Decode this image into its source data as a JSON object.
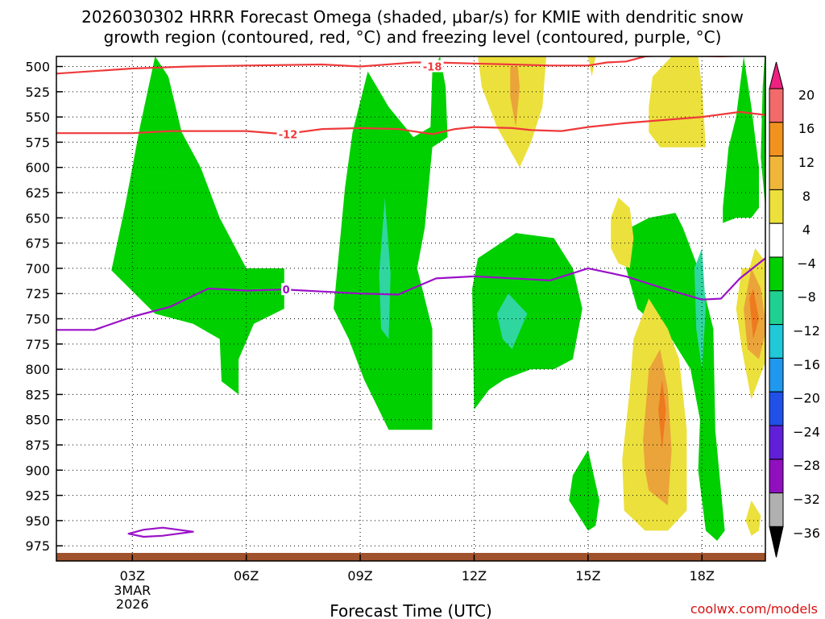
{
  "chart_data": {
    "type": "contour",
    "title_lines": [
      "2026030302 HRRR Forecast Omega (shaded, μbar/s) for KMIE with dendritic snow",
      "growth region (contoured, red, °C) and freezing level (contoured, purple, °C)"
    ],
    "xlabel": "Forecast Time (UTC)",
    "credit": "coolwx.com/models",
    "xlim": [
      1,
      19.67
    ],
    "ylim": [
      990,
      490
    ],
    "x_ticks": [
      {
        "x": 3,
        "label": "03Z",
        "sub": [
          "3MAR",
          "2026"
        ]
      },
      {
        "x": 6,
        "label": "06Z"
      },
      {
        "x": 9,
        "label": "09Z"
      },
      {
        "x": 12,
        "label": "12Z"
      },
      {
        "x": 15,
        "label": "15Z"
      },
      {
        "x": 18,
        "label": "18Z"
      }
    ],
    "y_ticks": [
      500,
      525,
      550,
      575,
      600,
      625,
      650,
      675,
      700,
      725,
      750,
      775,
      800,
      825,
      850,
      875,
      900,
      925,
      950,
      975
    ],
    "colorbar": {
      "labels": [
        "20",
        "16",
        "12",
        "8",
        "4",
        "−4",
        "−8",
        "−12",
        "−16",
        "−20",
        "−24",
        "−28",
        "−32",
        "−36"
      ],
      "colors": [
        "#f26a6a",
        "#f2921e",
        "#f0b63a",
        "#ece03c",
        "#ffffff",
        "#00d000",
        "#20d090",
        "#20c8d8",
        "#2098ee",
        "#2050e8",
        "#6020d8",
        "#9010c0",
        "#b0b0b0"
      ],
      "top_color": "#ee2080",
      "bottom_color": "#000000"
    },
    "colors": {
      "green": "#00d000",
      "teal": "#30d6a0",
      "cyan": "#30c8d8",
      "yellow": "#ece03c",
      "orange": "#eaa43a",
      "dorange": "#ee7a1e",
      "red": "#ee3a3a",
      "purple": "#9a10c8",
      "ground": "#a0522d"
    },
    "shaded": [
      {
        "color": "green",
        "points": [
          [
            2.45,
            702
          ],
          [
            2.8,
            640
          ],
          [
            3.2,
            560
          ],
          [
            3.6,
            490
          ],
          [
            3.95,
            510
          ],
          [
            4.3,
            565
          ],
          [
            4.8,
            600
          ],
          [
            5.3,
            650
          ],
          [
            6,
            700
          ],
          [
            7,
            700
          ],
          [
            7,
            740
          ],
          [
            6.2,
            755
          ],
          [
            5.8,
            790
          ],
          [
            5.8,
            825
          ],
          [
            5.35,
            812
          ],
          [
            5.3,
            770
          ],
          [
            4.6,
            755
          ],
          [
            3.6,
            745
          ]
        ]
      },
      {
        "color": "green",
        "points": [
          [
            8.4,
            700
          ],
          [
            8.6,
            620
          ],
          [
            8.8,
            565
          ],
          [
            9.2,
            505
          ],
          [
            9.75,
            540
          ],
          [
            10.4,
            570
          ],
          [
            10.85,
            560
          ],
          [
            10.9,
            505
          ],
          [
            11.1,
            490
          ],
          [
            11.25,
            520
          ],
          [
            11.3,
            570
          ],
          [
            10.9,
            580
          ],
          [
            10.7,
            660
          ],
          [
            10.5,
            700
          ],
          [
            10.9,
            760
          ],
          [
            10.9,
            860
          ],
          [
            10.1,
            860
          ],
          [
            9.75,
            860
          ],
          [
            9.1,
            810
          ],
          [
            8.7,
            770
          ],
          [
            8.3,
            740
          ]
        ]
      },
      {
        "color": "teal",
        "points": [
          [
            9.5,
            705
          ],
          [
            9.65,
            630
          ],
          [
            9.8,
            705
          ],
          [
            9.75,
            770
          ],
          [
            9.55,
            760
          ]
        ]
      },
      {
        "color": "green",
        "points": [
          [
            11.95,
            720
          ],
          [
            12.1,
            690
          ],
          [
            12.5,
            680
          ],
          [
            13.1,
            665
          ],
          [
            14.1,
            670
          ],
          [
            14.6,
            700
          ],
          [
            14.85,
            740
          ],
          [
            14.6,
            790
          ],
          [
            14.1,
            800
          ],
          [
            13.5,
            800
          ],
          [
            12.8,
            810
          ],
          [
            12.4,
            820
          ],
          [
            12,
            840
          ]
        ]
      },
      {
        "color": "teal",
        "points": [
          [
            12.6,
            745
          ],
          [
            12.9,
            725
          ],
          [
            13.4,
            745
          ],
          [
            13,
            780
          ],
          [
            12.75,
            770
          ]
        ]
      },
      {
        "color": "green",
        "points": [
          [
            16.1,
            660
          ],
          [
            16.6,
            650
          ],
          [
            17.3,
            645
          ],
          [
            17.5,
            660
          ],
          [
            17.9,
            700
          ],
          [
            18.3,
            760
          ],
          [
            18.35,
            860
          ],
          [
            18.6,
            960
          ],
          [
            18.4,
            970
          ],
          [
            18.1,
            960
          ],
          [
            17.9,
            900
          ],
          [
            17.95,
            850
          ],
          [
            17.7,
            800
          ],
          [
            17.2,
            770
          ],
          [
            16.3,
            740
          ],
          [
            16,
            700
          ]
        ]
      },
      {
        "color": "teal",
        "points": [
          [
            17.8,
            700
          ],
          [
            18,
            680
          ],
          [
            18.1,
            740
          ],
          [
            18,
            800
          ],
          [
            17.85,
            760
          ]
        ]
      },
      {
        "color": "green",
        "points": [
          [
            14.5,
            930
          ],
          [
            14.6,
            905
          ],
          [
            15,
            880
          ],
          [
            15.3,
            930
          ],
          [
            15.2,
            955
          ],
          [
            15,
            960
          ]
        ]
      },
      {
        "color": "green",
        "points": [
          [
            18.55,
            640
          ],
          [
            18.7,
            580
          ],
          [
            18.9,
            550
          ],
          [
            19.1,
            490
          ],
          [
            19.3,
            540
          ],
          [
            19.5,
            600
          ],
          [
            19.5,
            640
          ],
          [
            19.3,
            650
          ],
          [
            18.9,
            650
          ],
          [
            18.55,
            655
          ]
        ]
      },
      {
        "color": "green",
        "points": [
          [
            19.6,
            520
          ],
          [
            19.67,
            480
          ],
          [
            19.67,
            640
          ],
          [
            19.55,
            590
          ]
        ]
      },
      {
        "color": "yellow",
        "points": [
          [
            12.1,
            490
          ],
          [
            13.9,
            490
          ],
          [
            13.8,
            540
          ],
          [
            13.5,
            575
          ],
          [
            13.2,
            600
          ],
          [
            12.6,
            560
          ],
          [
            12.2,
            520
          ]
        ]
      },
      {
        "color": "orange",
        "points": [
          [
            12.95,
            500
          ],
          [
            13.15,
            500
          ],
          [
            13.2,
            520
          ],
          [
            13.1,
            560
          ],
          [
            12.95,
            530
          ]
        ]
      },
      {
        "color": "yellow",
        "points": [
          [
            15,
            490
          ],
          [
            15.2,
            490
          ],
          [
            15.1,
            510
          ]
        ]
      },
      {
        "color": "yellow",
        "points": [
          [
            16.6,
            540
          ],
          [
            16.7,
            510
          ],
          [
            17.2,
            490
          ],
          [
            17.9,
            490
          ],
          [
            18,
            520
          ],
          [
            18.1,
            580
          ],
          [
            17.5,
            580
          ],
          [
            16.9,
            580
          ],
          [
            16.6,
            565
          ]
        ]
      },
      {
        "color": "yellow",
        "points": [
          [
            15.6,
            650
          ],
          [
            15.8,
            630
          ],
          [
            16.1,
            640
          ],
          [
            16.2,
            670
          ],
          [
            16.1,
            700
          ],
          [
            15.8,
            695
          ],
          [
            15.6,
            680
          ]
        ]
      },
      {
        "color": "yellow",
        "points": [
          [
            15.9,
            890
          ],
          [
            16.1,
            820
          ],
          [
            16.2,
            770
          ],
          [
            16.6,
            730
          ],
          [
            17.1,
            760
          ],
          [
            17.4,
            790
          ],
          [
            17.6,
            860
          ],
          [
            17.6,
            940
          ],
          [
            17.1,
            960
          ],
          [
            16.5,
            960
          ],
          [
            15.95,
            940
          ]
        ]
      },
      {
        "color": "orange",
        "points": [
          [
            16.45,
            870
          ],
          [
            16.6,
            800
          ],
          [
            16.9,
            780
          ],
          [
            17.1,
            820
          ],
          [
            17.2,
            880
          ],
          [
            17.1,
            935
          ],
          [
            16.6,
            920
          ],
          [
            16.5,
            900
          ]
        ]
      },
      {
        "color": "dorange",
        "points": [
          [
            16.85,
            840
          ],
          [
            16.95,
            810
          ],
          [
            17.05,
            840
          ],
          [
            16.95,
            880
          ]
        ]
      },
      {
        "color": "yellow",
        "points": [
          [
            19.25,
            700
          ],
          [
            19.4,
            680
          ],
          [
            19.8,
            700
          ],
          [
            19.9,
            740
          ],
          [
            19.8,
            780
          ],
          [
            19.5,
            810
          ],
          [
            19.3,
            830
          ],
          [
            19.05,
            780
          ],
          [
            18.9,
            740
          ],
          [
            19.05,
            700
          ]
        ]
      },
      {
        "color": "orange",
        "points": [
          [
            19.1,
            740
          ],
          [
            19.3,
            700
          ],
          [
            19.55,
            720
          ],
          [
            19.7,
            760
          ],
          [
            19.5,
            790
          ],
          [
            19.2,
            780
          ]
        ]
      },
      {
        "color": "dorange",
        "points": [
          [
            19.25,
            730
          ],
          [
            19.35,
            720
          ],
          [
            19.5,
            750
          ],
          [
            19.35,
            770
          ]
        ]
      },
      {
        "color": "yellow",
        "points": [
          [
            19.15,
            950
          ],
          [
            19.3,
            930
          ],
          [
            19.55,
            945
          ],
          [
            19.5,
            960
          ],
          [
            19.3,
            965
          ]
        ]
      }
    ],
    "red_lines": [
      {
        "label": "-18",
        "label_x": 10.9,
        "label_y": 500,
        "points": [
          [
            1,
            507
          ],
          [
            3,
            502
          ],
          [
            4.5,
            500
          ],
          [
            6,
            499
          ],
          [
            8,
            498
          ],
          [
            9,
            500
          ],
          [
            10.4,
            496
          ],
          [
            11,
            496
          ],
          [
            12,
            497
          ],
          [
            13,
            498
          ],
          [
            14,
            499
          ],
          [
            15,
            499
          ],
          [
            15.5,
            496
          ],
          [
            16,
            495
          ],
          [
            16.5,
            490
          ],
          [
            17,
            489
          ],
          [
            18.5,
            490
          ],
          [
            19.2,
            489
          ],
          [
            19.5,
            487
          ]
        ]
      },
      {
        "label": "-12",
        "label_x": 7.1,
        "label_y": 567,
        "points": [
          [
            1,
            566
          ],
          [
            3,
            566
          ],
          [
            4,
            564
          ],
          [
            5,
            564
          ],
          [
            6,
            564
          ],
          [
            7,
            567
          ],
          [
            8,
            562
          ],
          [
            9,
            561
          ],
          [
            10,
            562
          ],
          [
            10.9,
            567
          ],
          [
            11.5,
            562
          ],
          [
            12,
            560
          ],
          [
            13,
            561
          ],
          [
            13.5,
            563
          ],
          [
            14.3,
            564
          ],
          [
            15,
            560
          ],
          [
            16,
            556
          ],
          [
            17,
            553
          ],
          [
            18,
            550
          ],
          [
            19,
            545
          ],
          [
            19.67,
            548
          ]
        ]
      }
    ],
    "purple_lines": [
      {
        "label": "0",
        "label_x": 7.05,
        "label_y": 721,
        "points": [
          [
            1,
            761
          ],
          [
            2,
            761
          ],
          [
            3,
            748
          ],
          [
            4,
            738
          ],
          [
            5,
            720
          ],
          [
            6,
            722
          ],
          [
            7,
            721
          ],
          [
            8,
            723
          ],
          [
            9,
            725
          ],
          [
            10,
            726
          ],
          [
            11,
            710
          ],
          [
            12,
            708
          ],
          [
            13,
            710
          ],
          [
            14,
            712
          ],
          [
            15,
            700
          ],
          [
            16,
            708
          ],
          [
            17,
            720
          ],
          [
            18,
            731
          ],
          [
            18.5,
            730
          ],
          [
            19,
            710
          ],
          [
            19.67,
            690
          ]
        ]
      },
      {
        "closed": true,
        "points": [
          [
            2.9,
            963
          ],
          [
            3.3,
            959
          ],
          [
            3.8,
            957
          ],
          [
            4.6,
            961
          ],
          [
            3.8,
            965
          ],
          [
            3.3,
            966
          ]
        ]
      }
    ]
  }
}
